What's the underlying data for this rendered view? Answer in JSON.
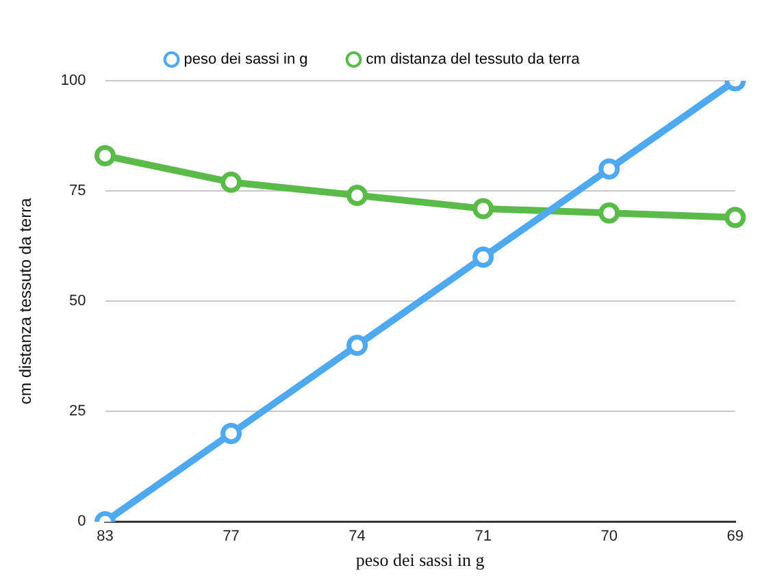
{
  "chart_data": {
    "type": "line",
    "xlabel": "peso dei sassi in g",
    "ylabel": "cm distanza tessuto da terra",
    "categories": [
      "83",
      "77",
      "74",
      "71",
      "70",
      "69"
    ],
    "series": [
      {
        "name": "peso dei sassi in g",
        "color": "#4fa9f0",
        "values": [
          0,
          20,
          40,
          60,
          80,
          100
        ]
      },
      {
        "name": "cm distanza del tessuto da terra",
        "color": "#5bbb4a",
        "values": [
          83,
          77,
          74,
          71,
          70,
          69
        ]
      }
    ],
    "ylim": [
      0,
      100
    ],
    "yticks": [
      0,
      25,
      50,
      75,
      100
    ],
    "grid": "y",
    "legend": "top",
    "marker": "circle",
    "line_style": "solid"
  }
}
